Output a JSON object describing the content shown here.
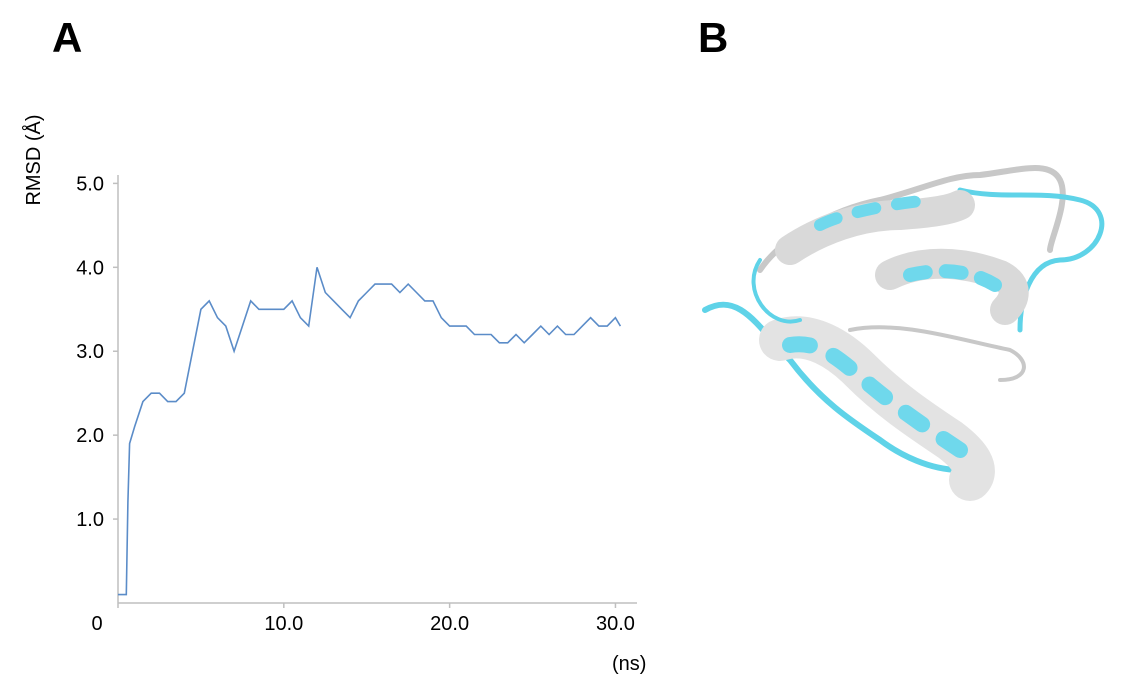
{
  "panel_labels": [
    "A",
    "B"
  ],
  "chart_data": {
    "type": "line",
    "ylabel": "RMSD (Å)",
    "xlabel": "(ns)",
    "x": [
      0,
      0.3,
      0.5,
      0.6,
      0.7,
      1.0,
      1.5,
      2.0,
      2.5,
      3.0,
      3.5,
      4.0,
      4.5,
      5.0,
      5.5,
      6.0,
      6.5,
      7.0,
      7.5,
      8.0,
      8.5,
      9.0,
      9.5,
      10.0,
      10.5,
      11.0,
      11.5,
      12.0,
      12.5,
      13.0,
      13.5,
      14.0,
      14.5,
      15.0,
      15.5,
      16.0,
      16.5,
      17.0,
      17.5,
      18.0,
      18.5,
      19.0,
      19.5,
      20.0,
      20.5,
      21.0,
      21.5,
      22.0,
      22.5,
      23.0,
      23.5,
      24.0,
      24.5,
      25.0,
      25.5,
      26.0,
      26.5,
      27.0,
      27.5,
      28.0,
      28.5,
      29.0,
      29.5,
      30.0,
      30.3
    ],
    "series": [
      {
        "color": "#5b8cc8",
        "values": [
          0.1,
          0.1,
          0.1,
          1.2,
          1.9,
          2.1,
          2.4,
          2.5,
          2.5,
          2.4,
          2.4,
          2.5,
          3.0,
          3.5,
          3.6,
          3.4,
          3.3,
          3.0,
          3.3,
          3.6,
          3.5,
          3.5,
          3.5,
          3.5,
          3.6,
          3.4,
          3.3,
          4.0,
          3.7,
          3.6,
          3.5,
          3.4,
          3.6,
          3.7,
          3.8,
          3.8,
          3.8,
          3.7,
          3.8,
          3.7,
          3.6,
          3.6,
          3.4,
          3.3,
          3.3,
          3.3,
          3.2,
          3.2,
          3.2,
          3.1,
          3.1,
          3.2,
          3.1,
          3.2,
          3.3,
          3.2,
          3.3,
          3.2,
          3.2,
          3.3,
          3.4,
          3.3,
          3.3,
          3.4,
          3.3
        ]
      }
    ],
    "xlim": [
      0,
      31.3
    ],
    "ylim": [
      0,
      5.1
    ],
    "xticks": [
      0,
      {
        "value": 10,
        "label": "10.0"
      },
      {
        "value": 20,
        "label": "20.0"
      },
      {
        "value": 30,
        "label": "30.0"
      }
    ],
    "yticks": [
      {
        "value": 1,
        "label": "1.0"
      },
      {
        "value": 2,
        "label": "2.0"
      },
      {
        "value": 3,
        "label": "3.0"
      },
      {
        "value": 4,
        "label": "4.0"
      },
      {
        "value": 5,
        "label": "5.0"
      }
    ]
  }
}
